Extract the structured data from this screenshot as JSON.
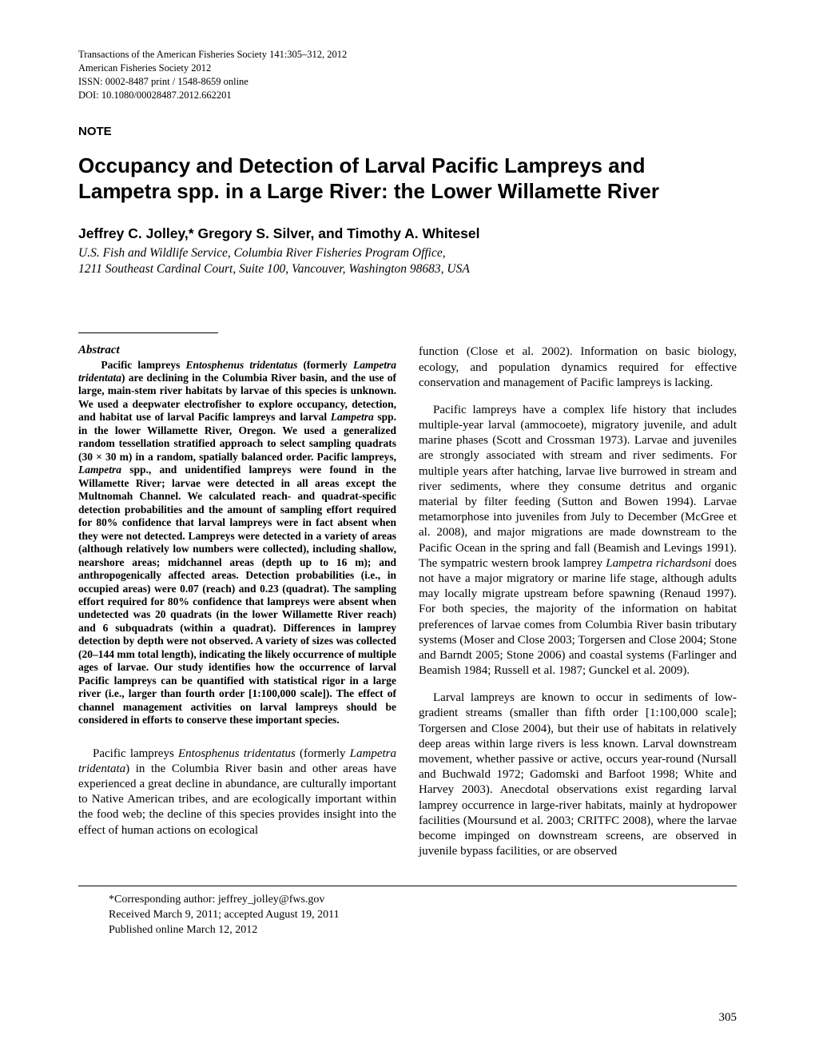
{
  "journal": {
    "line1": "Transactions of the American Fisheries Society 141:305–312, 2012",
    "line2": "American Fisheries Society 2012",
    "line3": "ISSN: 0002-8487 print / 1548-8659 online",
    "line4": "DOI: 10.1080/00028487.2012.662201"
  },
  "note_label": "NOTE",
  "title_line1": "Occupancy and Detection of Larval Pacific Lampreys and",
  "title_line2_pre": "La",
  "title_line2_sp": "m",
  "title_line2_post": "petra spp. in a Large River: the Lower Willamette River",
  "authors": "Jeffrey C. Jolley,* Gregory S. Silver, and Timothy A. Whitesel",
  "affiliation_line1": "U.S. Fish and Wildlife Service, Columbia River Fisheries Program Office,",
  "affiliation_line2": "1211 Southeast Cardinal Court, Suite 100, Vancouver, Washington 98683, USA",
  "abstract_heading": "Abstract",
  "abstract_body": "Pacific lampreys Entosphenus tridentatus (formerly Lampetra tridentata) are declining in the Columbia River basin, and the use of large, main-stem river habitats by larvae of this species is unknown. We used a deepwater electrofisher to explore occupancy, detection, and habitat use of larval Pacific lampreys and larval Lampetra spp. in the lower Willamette River, Oregon. We used a generalized random tessellation stratified approach to select sampling quadrats (30 × 30 m) in a random, spatially balanced order. Pacific lampreys, Lampetra spp., and unidentified lampreys were found in the Willamette River; larvae were detected in all areas except the Multnomah Channel. We calculated reach- and quadrat-specific detection probabilities and the amount of sampling effort required for 80% confidence that larval lampreys were in fact absent when they were not detected. Lampreys were detected in a variety of areas (although relatively low numbers were collected), including shallow, nearshore areas; midchannel areas (depth up to 16 m); and anthropogenically affected areas. Detection probabilities (i.e., in occupied areas) were 0.07 (reach) and 0.23 (quadrat). The sampling effort required for 80% confidence that lampreys were absent when undetected was 20 quadrats (in the lower Willamette River reach) and 6 subquadrats (within a quadrat). Differences in lamprey detection by depth were not observed. A variety of sizes was collected (20–144 mm total length), indicating the likely occurrence of multiple ages of larvae. Our study identifies how the occurrence of larval Pacific lampreys can be quantified with statistical rigor in a large river (i.e., larger than fourth order [1:100,000 scale]). The effect of channel management activities on larval lampreys should be considered in efforts to conserve these important species.",
  "intro_para": "Pacific lampreys Entosphenus tridentatus (formerly Lampetra tridentata) in the Columbia River basin and other areas have experienced a great decline in abundance, are culturally important to Native American tribes, and are ecologically important within the food web; the decline of this species provides insight into the effect of human actions on ecological",
  "col2_para1": "function (Close et al. 2002). Information on basic biology, ecology, and population dynamics required for effective conservation and management of Pacific lampreys is lacking.",
  "col2_para2": "Pacific lampreys have a complex life history that includes multiple-year larval (ammocoete), migratory juvenile, and adult marine phases (Scott and Crossman 1973). Larvae and juveniles are strongly associated with stream and river sediments. For multiple years after hatching, larvae live burrowed in stream and river sediments, where they consume detritus and organic material by filter feeding (Sutton and Bowen 1994). Larvae metamorphose into juveniles from July to December (McGree et al. 2008), and major migrations are made downstream to the Pacific Ocean in the spring and fall (Beamish and Levings 1991). The sympatric western brook lamprey Lampetra richardsoni does not have a major migratory or marine life stage, although adults may locally migrate upstream before spawning (Renaud 1997). For both species, the majority of the information on habitat preferences of larvae comes from Columbia River basin tributary systems (Moser and Close 2003; Torgersen and Close 2004; Stone and Barndt 2005; Stone 2006) and coastal systems (Farlinger and Beamish 1984; Russell et al. 1987; Gunckel et al. 2009).",
  "col2_para3": "Larval lampreys are known to occur in sediments of low-gradient streams (smaller than fifth order [1:100,000 scale]; Torgersen and Close 2004), but their use of habitats in relatively deep areas within large rivers is less known. Larval downstream movement, whether passive or active, occurs year-round (Nursall and Buchwald 1972; Gadomski and Barfoot 1998; White and Harvey 2003). Anecdotal observations exist regarding larval lamprey occurrence in large-river habitats, mainly at hydropower facilities (Moursund et al. 2003; CRITFC 2008), where the larvae become impinged on downstream screens, are observed in juvenile bypass facilities, or are observed",
  "footnote1": "*Corresponding author: jeffrey_jolley@fws.gov",
  "footnote2": "Received March 9, 2011; accepted August 19, 2011",
  "footnote3": "Published online March 12, 2012",
  "page_number": "305"
}
